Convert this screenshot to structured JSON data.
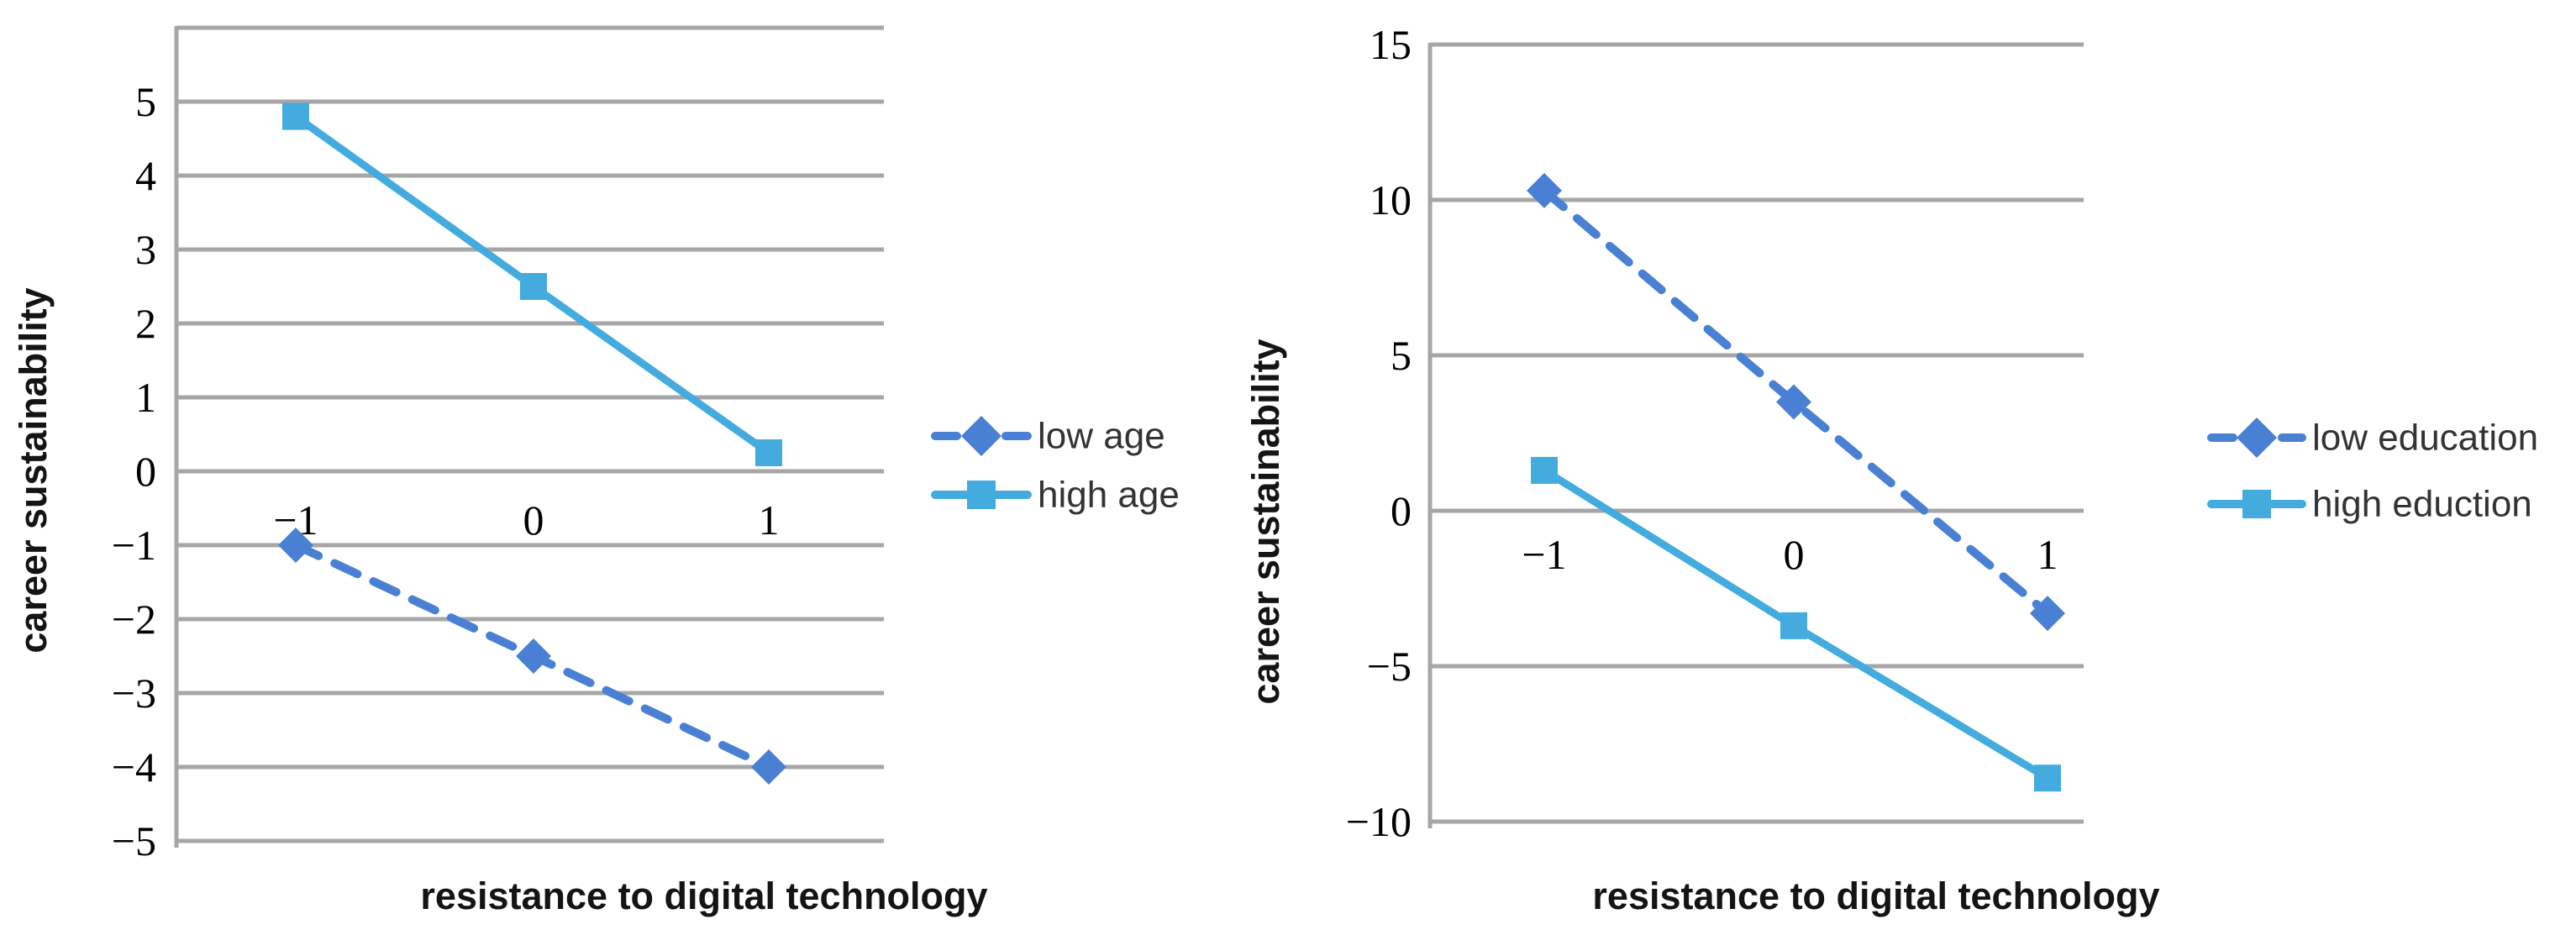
{
  "figure": {
    "description": "Two interaction plots of resistance to digital technology on career sustainability",
    "background": "#ffffff"
  },
  "colors": {
    "dashed_series": "#4a80d4",
    "solid_series": "#44abdf",
    "gridline": "#a6a6a6",
    "axis_line": "#a6a6a6",
    "tick_text": "#000000",
    "title_text": "#141414",
    "legend_text": "#333333",
    "background": "#ffffff"
  },
  "chart_data": [
    {
      "id": "age-moderation-plot",
      "type": "line",
      "title": "",
      "xlabel": "resistance to digital technology",
      "ylabel": "career sustainability",
      "x": [
        -1,
        0,
        1
      ],
      "xtick_labels": [
        "−1",
        "0",
        "1"
      ],
      "yticks": [
        5,
        4,
        3,
        2,
        1,
        0,
        -1,
        -2,
        -3,
        -4,
        -5
      ],
      "ytick_labels": [
        "5",
        "4",
        "3",
        "2",
        "1",
        "0",
        "−1",
        "−2",
        "−3",
        "−4",
        "−5"
      ],
      "ylim": [
        -5,
        6
      ],
      "grid": true,
      "legend_position": "right-outside",
      "series": [
        {
          "name": "low age",
          "values": [
            -1.0,
            -2.5,
            -4.0
          ],
          "style": "dashed",
          "marker": "diamond",
          "color": "#4a80d4"
        },
        {
          "name": "high age",
          "values": [
            4.8,
            2.5,
            0.25
          ],
          "style": "solid",
          "marker": "square",
          "color": "#44abdf"
        }
      ]
    },
    {
      "id": "education-moderation-plot",
      "type": "line",
      "title": "",
      "xlabel": "resistance to digital technology",
      "ylabel": "career sustainability",
      "x": [
        -1,
        0,
        1
      ],
      "xtick_labels": [
        "−1",
        "0",
        "1"
      ],
      "yticks": [
        15,
        10,
        5,
        0,
        -5,
        -10
      ],
      "ytick_labels": [
        "15",
        "10",
        "5",
        "0",
        "−5",
        "−10"
      ],
      "ylim": [
        -10,
        15
      ],
      "grid": true,
      "legend_position": "right-outside",
      "series": [
        {
          "name": "low education",
          "values": [
            10.3,
            3.5,
            -3.3
          ],
          "style": "dashed",
          "marker": "diamond",
          "color": "#4a80d4"
        },
        {
          "name": "high eduction",
          "values": [
            1.3,
            -3.7,
            -8.6
          ],
          "style": "solid",
          "marker": "square",
          "color": "#44abdf"
        }
      ]
    }
  ]
}
